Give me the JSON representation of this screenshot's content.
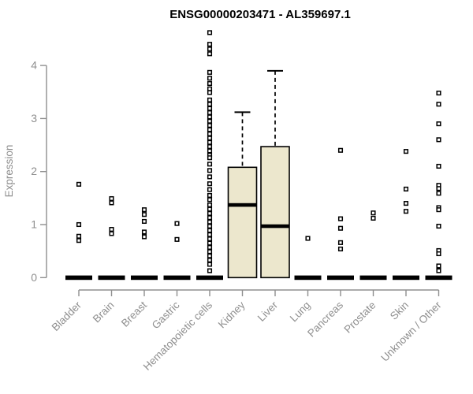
{
  "chart_data": {
    "type": "boxplot",
    "title": "ENSG00000203471 - AL359697.1",
    "ylabel": "Expression",
    "xlabel": "",
    "yticks": [
      0,
      1,
      2,
      3,
      4
    ],
    "ylim": [
      0,
      4.75
    ],
    "grid": false,
    "legend": "none",
    "point_marker": "open-square",
    "colors": {
      "box_fill": "#ece7cd",
      "box_stroke": "#000000",
      "axis": "#8f8f8f",
      "tick_text": "#8f8f8f",
      "title_text": "#000000",
      "background": "#ffffff"
    },
    "categories": [
      "Bladder",
      "Brain",
      "Breast",
      "Gastric",
      "Hematopoietic cells",
      "Kidney",
      "Liver",
      "Lung",
      "Pancreas",
      "Prostate",
      "Skin",
      "Unknown / Other"
    ],
    "series": [
      {
        "category": "Bladder",
        "q1": 0,
        "median": 0,
        "q3": 0,
        "whisker_high": 0,
        "collapsed": true,
        "points": [
          1.76,
          1.0,
          0.78,
          0.7
        ]
      },
      {
        "category": "Brain",
        "q1": 0,
        "median": 0,
        "q3": 0,
        "whisker_high": 0,
        "collapsed": true,
        "points": [
          1.49,
          1.41,
          0.91,
          0.83
        ]
      },
      {
        "category": "Breast",
        "q1": 0,
        "median": 0,
        "q3": 0,
        "whisker_high": 0,
        "collapsed": true,
        "points": [
          1.28,
          1.19,
          1.06,
          0.86,
          0.77
        ]
      },
      {
        "category": "Gastric",
        "q1": 0,
        "median": 0,
        "q3": 0,
        "whisker_high": 0,
        "collapsed": true,
        "points": [
          1.02,
          0.72
        ]
      },
      {
        "category": "Hematopoietic cells",
        "q1": 0,
        "median": 0,
        "q3": 0,
        "whisker_high": 0,
        "collapsed": true,
        "points": [
          4.62,
          4.4,
          4.31,
          4.22,
          3.87,
          3.76,
          3.66,
          3.56,
          3.49,
          3.35,
          3.27,
          3.19,
          3.11,
          3.03,
          2.95,
          2.87,
          2.79,
          2.71,
          2.63,
          2.55,
          2.47,
          2.39,
          2.31,
          2.26,
          2.14,
          2.02,
          1.9,
          1.77,
          1.66,
          1.55,
          1.47,
          1.37,
          1.29,
          1.21,
          1.13,
          1.05,
          0.97,
          0.89,
          0.81,
          0.73,
          0.65,
          0.57,
          0.49,
          0.41,
          0.33,
          0.25,
          0.13
        ]
      },
      {
        "category": "Kidney",
        "q1": 0,
        "median": 1.37,
        "q3": 2.08,
        "whisker_high": 3.12,
        "collapsed": false,
        "points": []
      },
      {
        "category": "Liver",
        "q1": 0,
        "median": 0.97,
        "q3": 2.47,
        "whisker_high": 3.9,
        "collapsed": false,
        "points": []
      },
      {
        "category": "Lung",
        "q1": 0,
        "median": 0,
        "q3": 0,
        "whisker_high": 0,
        "collapsed": true,
        "points": [
          0.74
        ]
      },
      {
        "category": "Pancreas",
        "q1": 0,
        "median": 0,
        "q3": 0,
        "whisker_high": 0,
        "collapsed": true,
        "points": [
          2.4,
          1.11,
          0.93,
          0.66,
          0.54
        ]
      },
      {
        "category": "Prostate",
        "q1": 0,
        "median": 0,
        "q3": 0,
        "whisker_high": 0,
        "collapsed": true,
        "points": [
          1.22,
          1.12
        ]
      },
      {
        "category": "Skin",
        "q1": 0,
        "median": 0,
        "q3": 0,
        "whisker_high": 0,
        "collapsed": true,
        "points": [
          2.38,
          1.67,
          1.4,
          1.25
        ]
      },
      {
        "category": "Unknown / Other",
        "q1": 0,
        "median": 0,
        "q3": 0,
        "whisker_high": 0,
        "collapsed": true,
        "points": [
          3.48,
          3.27,
          2.9,
          2.6,
          2.1,
          1.74,
          1.68,
          1.59,
          1.32,
          1.28,
          0.97,
          0.51,
          0.45,
          0.22,
          0.13
        ]
      }
    ]
  }
}
